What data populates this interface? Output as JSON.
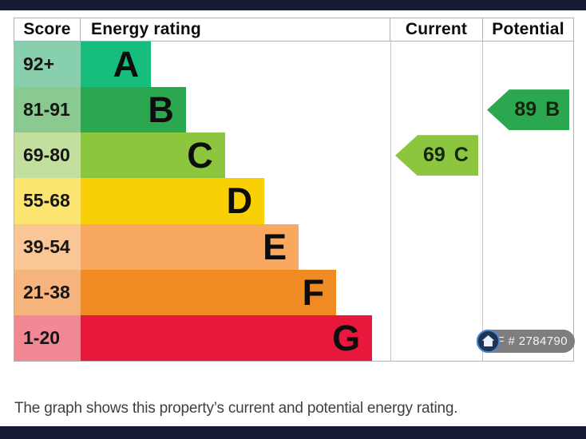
{
  "table": {
    "headers": {
      "score": "Score",
      "rating": "Energy rating",
      "current": "Current",
      "potential": "Potential"
    },
    "rows": [
      {
        "score": "92+",
        "letter": "A",
        "bar_color": "#16bd7d",
        "score_bg": "#87cfad",
        "bar_width_pct": 22.7
      },
      {
        "score": "81-91",
        "letter": "B",
        "bar_color": "#2ba84f",
        "score_bg": "#8aca90",
        "bar_width_pct": 34.0
      },
      {
        "score": "69-80",
        "letter": "C",
        "bar_color": "#8cc63f",
        "score_bg": "#c2df9e",
        "bar_width_pct": 46.6
      },
      {
        "score": "55-68",
        "letter": "D",
        "bar_color": "#f9d006",
        "score_bg": "#fbe570",
        "bar_width_pct": 59.3
      },
      {
        "score": "39-54",
        "letter": "E",
        "bar_color": "#f9a860",
        "score_bg": "#fbc696",
        "bar_width_pct": 70.4
      },
      {
        "score": "21-38",
        "letter": "F",
        "bar_color": "#ef8b22",
        "score_bg": "#f6b37c",
        "bar_width_pct": 82.5
      },
      {
        "score": "1-20",
        "letter": "G",
        "bar_color": "#e8173c",
        "score_bg": "#f28893",
        "bar_width_pct": 94.1
      }
    ],
    "current": {
      "value": "69",
      "letter": "C",
      "color": "#8cc63f",
      "row_index": 2
    },
    "potential": {
      "value": "89",
      "letter": "B",
      "color": "#2ba84f",
      "row_index": 1
    }
  },
  "footer": {
    "caption": "The graph shows this property’s current and potential energy rating."
  },
  "ref_badge": {
    "label": "REF # 2784790",
    "icon": "house-icon"
  },
  "colors": {
    "band": "#171a33",
    "grid": "#b3b3b3",
    "badge_ring": "#4d86cc",
    "badge_fill": "#1e3356"
  },
  "chart_data": {
    "type": "bar",
    "title": "Energy rating",
    "categories": [
      "A",
      "B",
      "C",
      "D",
      "E",
      "F",
      "G"
    ],
    "score_bands": [
      "92+",
      "81-91",
      "69-80",
      "55-68",
      "39-54",
      "21-38",
      "1-20"
    ],
    "bar_lengths_pct_of_axis": [
      22.7,
      34.0,
      46.6,
      59.3,
      70.4,
      82.5,
      94.1
    ],
    "bar_colors": [
      "#16bd7d",
      "#2ba84f",
      "#8cc63f",
      "#f9d006",
      "#f9a860",
      "#ef8b22",
      "#e8173c"
    ],
    "current": {
      "score": 69,
      "rating": "C"
    },
    "potential": {
      "score": 89,
      "rating": "B"
    },
    "legend_position": "none",
    "grid": false
  }
}
